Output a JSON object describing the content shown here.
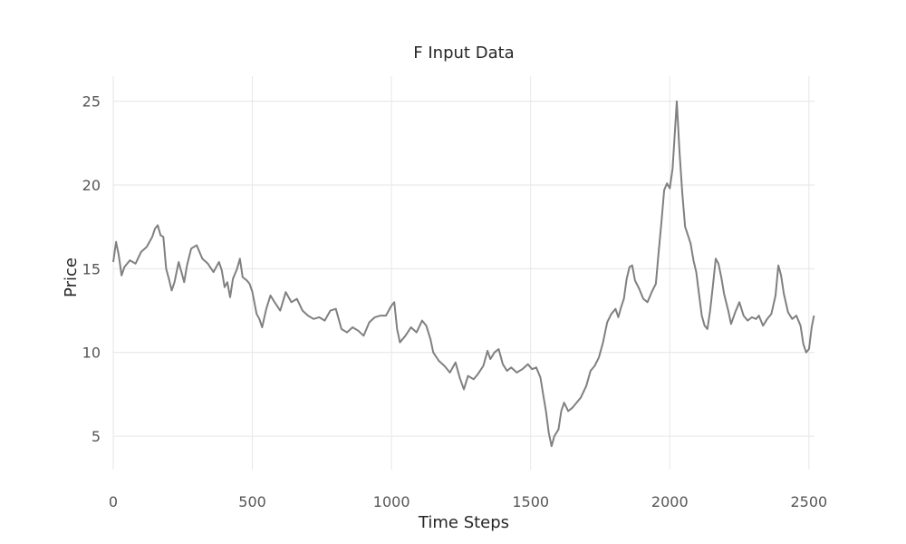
{
  "chart_data": {
    "type": "line",
    "title": "F Input Data",
    "xlabel": "Time Steps",
    "ylabel": "Price",
    "xlim": [
      0,
      2520
    ],
    "ylim": [
      3,
      26.5
    ],
    "xticks": [
      0,
      500,
      1000,
      1500,
      2000,
      2500
    ],
    "yticks": [
      5,
      10,
      15,
      20,
      25
    ],
    "grid": true,
    "series": [
      {
        "color": "#808080",
        "points": [
          [
            0,
            15.4
          ],
          [
            10,
            16.6
          ],
          [
            20,
            15.8
          ],
          [
            30,
            14.6
          ],
          [
            40,
            15.1
          ],
          [
            60,
            15.5
          ],
          [
            80,
            15.3
          ],
          [
            100,
            16.0
          ],
          [
            120,
            16.3
          ],
          [
            140,
            16.9
          ],
          [
            150,
            17.4
          ],
          [
            160,
            17.6
          ],
          [
            170,
            17.0
          ],
          [
            180,
            16.9
          ],
          [
            190,
            15.0
          ],
          [
            200,
            14.4
          ],
          [
            210,
            13.7
          ],
          [
            220,
            14.2
          ],
          [
            235,
            15.4
          ],
          [
            245,
            14.8
          ],
          [
            255,
            14.2
          ],
          [
            265,
            15.2
          ],
          [
            280,
            16.2
          ],
          [
            300,
            16.4
          ],
          [
            320,
            15.6
          ],
          [
            340,
            15.3
          ],
          [
            360,
            14.8
          ],
          [
            380,
            15.4
          ],
          [
            390,
            14.9
          ],
          [
            400,
            13.9
          ],
          [
            410,
            14.2
          ],
          [
            420,
            13.3
          ],
          [
            430,
            14.4
          ],
          [
            445,
            15.0
          ],
          [
            455,
            15.6
          ],
          [
            465,
            14.5
          ],
          [
            480,
            14.3
          ],
          [
            490,
            14.1
          ],
          [
            500,
            13.6
          ],
          [
            515,
            12.3
          ],
          [
            525,
            12.0
          ],
          [
            535,
            11.5
          ],
          [
            550,
            12.6
          ],
          [
            565,
            13.4
          ],
          [
            580,
            13.0
          ],
          [
            600,
            12.5
          ],
          [
            620,
            13.6
          ],
          [
            640,
            13.0
          ],
          [
            660,
            13.2
          ],
          [
            680,
            12.5
          ],
          [
            700,
            12.2
          ],
          [
            720,
            12.0
          ],
          [
            740,
            12.1
          ],
          [
            760,
            11.9
          ],
          [
            780,
            12.5
          ],
          [
            800,
            12.6
          ],
          [
            820,
            11.4
          ],
          [
            840,
            11.2
          ],
          [
            860,
            11.5
          ],
          [
            880,
            11.3
          ],
          [
            900,
            11.0
          ],
          [
            920,
            11.8
          ],
          [
            940,
            12.1
          ],
          [
            960,
            12.2
          ],
          [
            980,
            12.2
          ],
          [
            1000,
            12.8
          ],
          [
            1010,
            13.0
          ],
          [
            1020,
            11.4
          ],
          [
            1030,
            10.6
          ],
          [
            1050,
            11.0
          ],
          [
            1070,
            11.5
          ],
          [
            1090,
            11.2
          ],
          [
            1110,
            11.9
          ],
          [
            1125,
            11.6
          ],
          [
            1140,
            10.8
          ],
          [
            1150,
            10.0
          ],
          [
            1170,
            9.5
          ],
          [
            1190,
            9.2
          ],
          [
            1210,
            8.8
          ],
          [
            1230,
            9.4
          ],
          [
            1245,
            8.5
          ],
          [
            1260,
            7.8
          ],
          [
            1275,
            8.6
          ],
          [
            1295,
            8.4
          ],
          [
            1310,
            8.7
          ],
          [
            1330,
            9.2
          ],
          [
            1345,
            10.1
          ],
          [
            1355,
            9.6
          ],
          [
            1370,
            10.0
          ],
          [
            1385,
            10.2
          ],
          [
            1400,
            9.3
          ],
          [
            1415,
            8.9
          ],
          [
            1430,
            9.1
          ],
          [
            1450,
            8.8
          ],
          [
            1470,
            9.0
          ],
          [
            1490,
            9.3
          ],
          [
            1505,
            9.0
          ],
          [
            1520,
            9.1
          ],
          [
            1535,
            8.5
          ],
          [
            1545,
            7.5
          ],
          [
            1555,
            6.5
          ],
          [
            1565,
            5.2
          ],
          [
            1575,
            4.4
          ],
          [
            1585,
            5.0
          ],
          [
            1600,
            5.4
          ],
          [
            1610,
            6.5
          ],
          [
            1620,
            7.0
          ],
          [
            1635,
            6.5
          ],
          [
            1650,
            6.7
          ],
          [
            1665,
            7.0
          ],
          [
            1680,
            7.3
          ],
          [
            1700,
            8.0
          ],
          [
            1715,
            8.9
          ],
          [
            1730,
            9.2
          ],
          [
            1745,
            9.7
          ],
          [
            1760,
            10.6
          ],
          [
            1775,
            11.8
          ],
          [
            1790,
            12.3
          ],
          [
            1805,
            12.6
          ],
          [
            1815,
            12.1
          ],
          [
            1825,
            12.7
          ],
          [
            1835,
            13.2
          ],
          [
            1845,
            14.4
          ],
          [
            1855,
            15.1
          ],
          [
            1865,
            15.2
          ],
          [
            1875,
            14.3
          ],
          [
            1890,
            13.8
          ],
          [
            1905,
            13.2
          ],
          [
            1920,
            13.0
          ],
          [
            1935,
            13.6
          ],
          [
            1950,
            14.1
          ],
          [
            1960,
            16.0
          ],
          [
            1970,
            17.8
          ],
          [
            1980,
            19.7
          ],
          [
            1990,
            20.1
          ],
          [
            2000,
            19.8
          ],
          [
            2010,
            21.0
          ],
          [
            2020,
            23.6
          ],
          [
            2025,
            25.0
          ],
          [
            2035,
            22.0
          ],
          [
            2045,
            19.5
          ],
          [
            2055,
            17.5
          ],
          [
            2065,
            17.0
          ],
          [
            2075,
            16.5
          ],
          [
            2085,
            15.5
          ],
          [
            2095,
            14.8
          ],
          [
            2105,
            13.5
          ],
          [
            2115,
            12.2
          ],
          [
            2125,
            11.6
          ],
          [
            2135,
            11.4
          ],
          [
            2145,
            12.5
          ],
          [
            2155,
            14.0
          ],
          [
            2165,
            15.6
          ],
          [
            2175,
            15.3
          ],
          [
            2185,
            14.5
          ],
          [
            2195,
            13.5
          ],
          [
            2210,
            12.5
          ],
          [
            2220,
            11.7
          ],
          [
            2235,
            12.4
          ],
          [
            2250,
            13.0
          ],
          [
            2265,
            12.2
          ],
          [
            2280,
            11.9
          ],
          [
            2295,
            12.1
          ],
          [
            2310,
            12.0
          ],
          [
            2320,
            12.2
          ],
          [
            2335,
            11.6
          ],
          [
            2350,
            12.0
          ],
          [
            2365,
            12.3
          ],
          [
            2380,
            13.4
          ],
          [
            2390,
            15.2
          ],
          [
            2400,
            14.6
          ],
          [
            2410,
            13.5
          ],
          [
            2425,
            12.4
          ],
          [
            2440,
            12.0
          ],
          [
            2455,
            12.2
          ],
          [
            2470,
            11.6
          ],
          [
            2480,
            10.5
          ],
          [
            2490,
            10.0
          ],
          [
            2500,
            10.2
          ],
          [
            2510,
            11.5
          ],
          [
            2518,
            12.2
          ]
        ]
      }
    ]
  }
}
